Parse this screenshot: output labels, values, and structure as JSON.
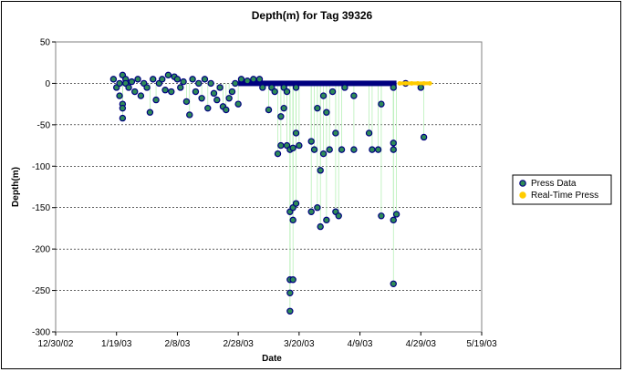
{
  "chart_data": {
    "type": "scatter",
    "title": "Depth(m) for Tag 39326",
    "xlabel": "Date",
    "ylabel": "Depth(m)",
    "xlim": [
      "2002-12-30",
      "2003-05-19"
    ],
    "ylim": [
      -300,
      50
    ],
    "x_ticks": [
      "12/30/02",
      "1/19/03",
      "2/8/03",
      "2/28/03",
      "3/20/03",
      "4/9/03",
      "4/29/03",
      "5/19/03"
    ],
    "y_ticks": [
      50,
      0,
      -50,
      -100,
      -150,
      -200,
      -250,
      -300
    ],
    "grid": "horizontal dashed",
    "legend_position": "right",
    "colors": {
      "plot_bg": "#ffffff",
      "press_fill": "#2e8b57",
      "press_edge": "#000080",
      "press_line": "#b8f0b8",
      "realtime": "#ffcc00"
    },
    "series": [
      {
        "name": "Press Data",
        "marker": "circle",
        "points": [
          [
            "2003-01-18",
            5
          ],
          [
            "2003-01-19",
            -5
          ],
          [
            "2003-01-20",
            0
          ],
          [
            "2003-01-20",
            -15
          ],
          [
            "2003-01-21",
            10
          ],
          [
            "2003-01-21",
            -25
          ],
          [
            "2003-01-21",
            -42
          ],
          [
            "2003-01-21",
            -30
          ],
          [
            "2003-01-22",
            5
          ],
          [
            "2003-01-22",
            0
          ],
          [
            "2003-01-23",
            -5
          ],
          [
            "2003-01-24",
            2
          ],
          [
            "2003-01-25",
            -10
          ],
          [
            "2003-01-26",
            5
          ],
          [
            "2003-01-27",
            -15
          ],
          [
            "2003-01-28",
            0
          ],
          [
            "2003-01-29",
            -5
          ],
          [
            "2003-01-30",
            -35
          ],
          [
            "2003-01-31",
            5
          ],
          [
            "2003-02-01",
            -20
          ],
          [
            "2003-02-02",
            0
          ],
          [
            "2003-02-03",
            5
          ],
          [
            "2003-02-04",
            -8
          ],
          [
            "2003-02-05",
            10
          ],
          [
            "2003-02-06",
            -10
          ],
          [
            "2003-02-07",
            8
          ],
          [
            "2003-02-08",
            5
          ],
          [
            "2003-02-09",
            -5
          ],
          [
            "2003-02-10",
            2
          ],
          [
            "2003-02-11",
            -22
          ],
          [
            "2003-02-12",
            -38
          ],
          [
            "2003-02-13",
            5
          ],
          [
            "2003-02-14",
            -10
          ],
          [
            "2003-02-15",
            0
          ],
          [
            "2003-02-16",
            -18
          ],
          [
            "2003-02-17",
            5
          ],
          [
            "2003-02-18",
            -30
          ],
          [
            "2003-02-19",
            0
          ],
          [
            "2003-02-20",
            -12
          ],
          [
            "2003-02-21",
            -20
          ],
          [
            "2003-02-22",
            -5
          ],
          [
            "2003-02-23",
            -28
          ],
          [
            "2003-02-24",
            -32
          ],
          [
            "2003-02-25",
            -18
          ],
          [
            "2003-02-26",
            -10
          ],
          [
            "2003-02-27",
            0
          ],
          [
            "2003-02-28",
            -25
          ],
          [
            "2003-03-01",
            5
          ],
          [
            "2003-03-03",
            3
          ],
          [
            "2003-03-05",
            5
          ],
          [
            "2003-03-07",
            5
          ],
          [
            "2003-03-08",
            -5
          ],
          [
            "2003-03-10",
            -32
          ],
          [
            "2003-03-11",
            -5
          ],
          [
            "2003-03-12",
            -10
          ],
          [
            "2003-03-13",
            -85
          ],
          [
            "2003-03-14",
            -75
          ],
          [
            "2003-03-14",
            -40
          ],
          [
            "2003-03-15",
            -30
          ],
          [
            "2003-03-15",
            -5
          ],
          [
            "2003-03-16",
            -75
          ],
          [
            "2003-03-16",
            -10
          ],
          [
            "2003-03-17",
            -80
          ],
          [
            "2003-03-17",
            -155
          ],
          [
            "2003-03-17",
            -253
          ],
          [
            "2003-03-17",
            -275
          ],
          [
            "2003-03-17",
            -237
          ],
          [
            "2003-03-18",
            -165
          ],
          [
            "2003-03-18",
            -78
          ],
          [
            "2003-03-18",
            -150
          ],
          [
            "2003-03-18",
            -237
          ],
          [
            "2003-03-19",
            -60
          ],
          [
            "2003-03-19",
            -145
          ],
          [
            "2003-03-19",
            -5
          ],
          [
            "2003-03-20",
            -75
          ],
          [
            "2003-03-24",
            -155
          ],
          [
            "2003-03-24",
            -70
          ],
          [
            "2003-03-25",
            -80
          ],
          [
            "2003-03-26",
            -30
          ],
          [
            "2003-03-26",
            -150
          ],
          [
            "2003-03-27",
            -173
          ],
          [
            "2003-03-27",
            -105
          ],
          [
            "2003-03-28",
            -85
          ],
          [
            "2003-03-28",
            -15
          ],
          [
            "2003-03-29",
            -165
          ],
          [
            "2003-03-29",
            -35
          ],
          [
            "2003-03-30",
            -80
          ],
          [
            "2003-03-31",
            -10
          ],
          [
            "2003-04-01",
            -60
          ],
          [
            "2003-04-01",
            -155
          ],
          [
            "2003-04-02",
            -160
          ],
          [
            "2003-04-03",
            -80
          ],
          [
            "2003-04-04",
            -5
          ],
          [
            "2003-04-07",
            -80
          ],
          [
            "2003-04-07",
            -15
          ],
          [
            "2003-04-12",
            -60
          ],
          [
            "2003-04-13",
            -80
          ],
          [
            "2003-04-15",
            -80
          ],
          [
            "2003-04-16",
            -25
          ],
          [
            "2003-04-16",
            -160
          ],
          [
            "2003-04-20",
            -242
          ],
          [
            "2003-04-20",
            -165
          ],
          [
            "2003-04-20",
            -80
          ],
          [
            "2003-04-20",
            -72
          ],
          [
            "2003-04-20",
            -5
          ],
          [
            "2003-04-21",
            -158
          ],
          [
            "2003-04-24",
            0
          ],
          [
            "2003-04-29",
            -5
          ],
          [
            "2003-04-30",
            -65
          ]
        ]
      },
      {
        "name": "Real-Time Press",
        "marker": "circle",
        "points": [
          [
            "2003-04-22",
            0
          ],
          [
            "2003-04-24",
            0
          ],
          [
            "2003-04-26",
            0
          ],
          [
            "2003-04-28",
            0
          ],
          [
            "2003-04-30",
            0
          ],
          [
            "2003-05-02",
            0
          ]
        ]
      }
    ]
  }
}
